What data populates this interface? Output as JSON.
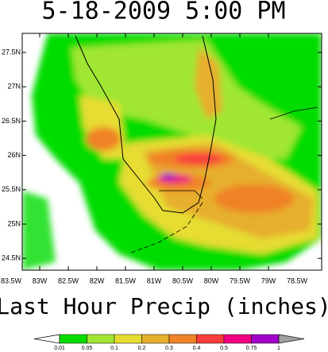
{
  "title": "5-18-2009 5:00 PM",
  "lat_labels": [
    "27.5N",
    "27N",
    "26.5N",
    "26N",
    "25.5N",
    "25N",
    "24.5N"
  ],
  "lon_labels": [
    "83.5W",
    "83W",
    "82.5W",
    "82W",
    "81.5W",
    "81W",
    "80.5W",
    "80W",
    "79.5W",
    "79W",
    "78.5W"
  ],
  "caption": "Last Hour Precip (inches)",
  "colorbar": {
    "labels": [
      "0.01",
      "0.05",
      "0.1",
      "0.2",
      "0.3",
      "0.4",
      "0.5",
      "0.75",
      "1"
    ],
    "colors": [
      "#00dc00",
      "#a0e632",
      "#e6dc32",
      "#e6af2d",
      "#f08228",
      "#fa3c3c",
      "#f00082",
      "#a000c8"
    ]
  }
}
